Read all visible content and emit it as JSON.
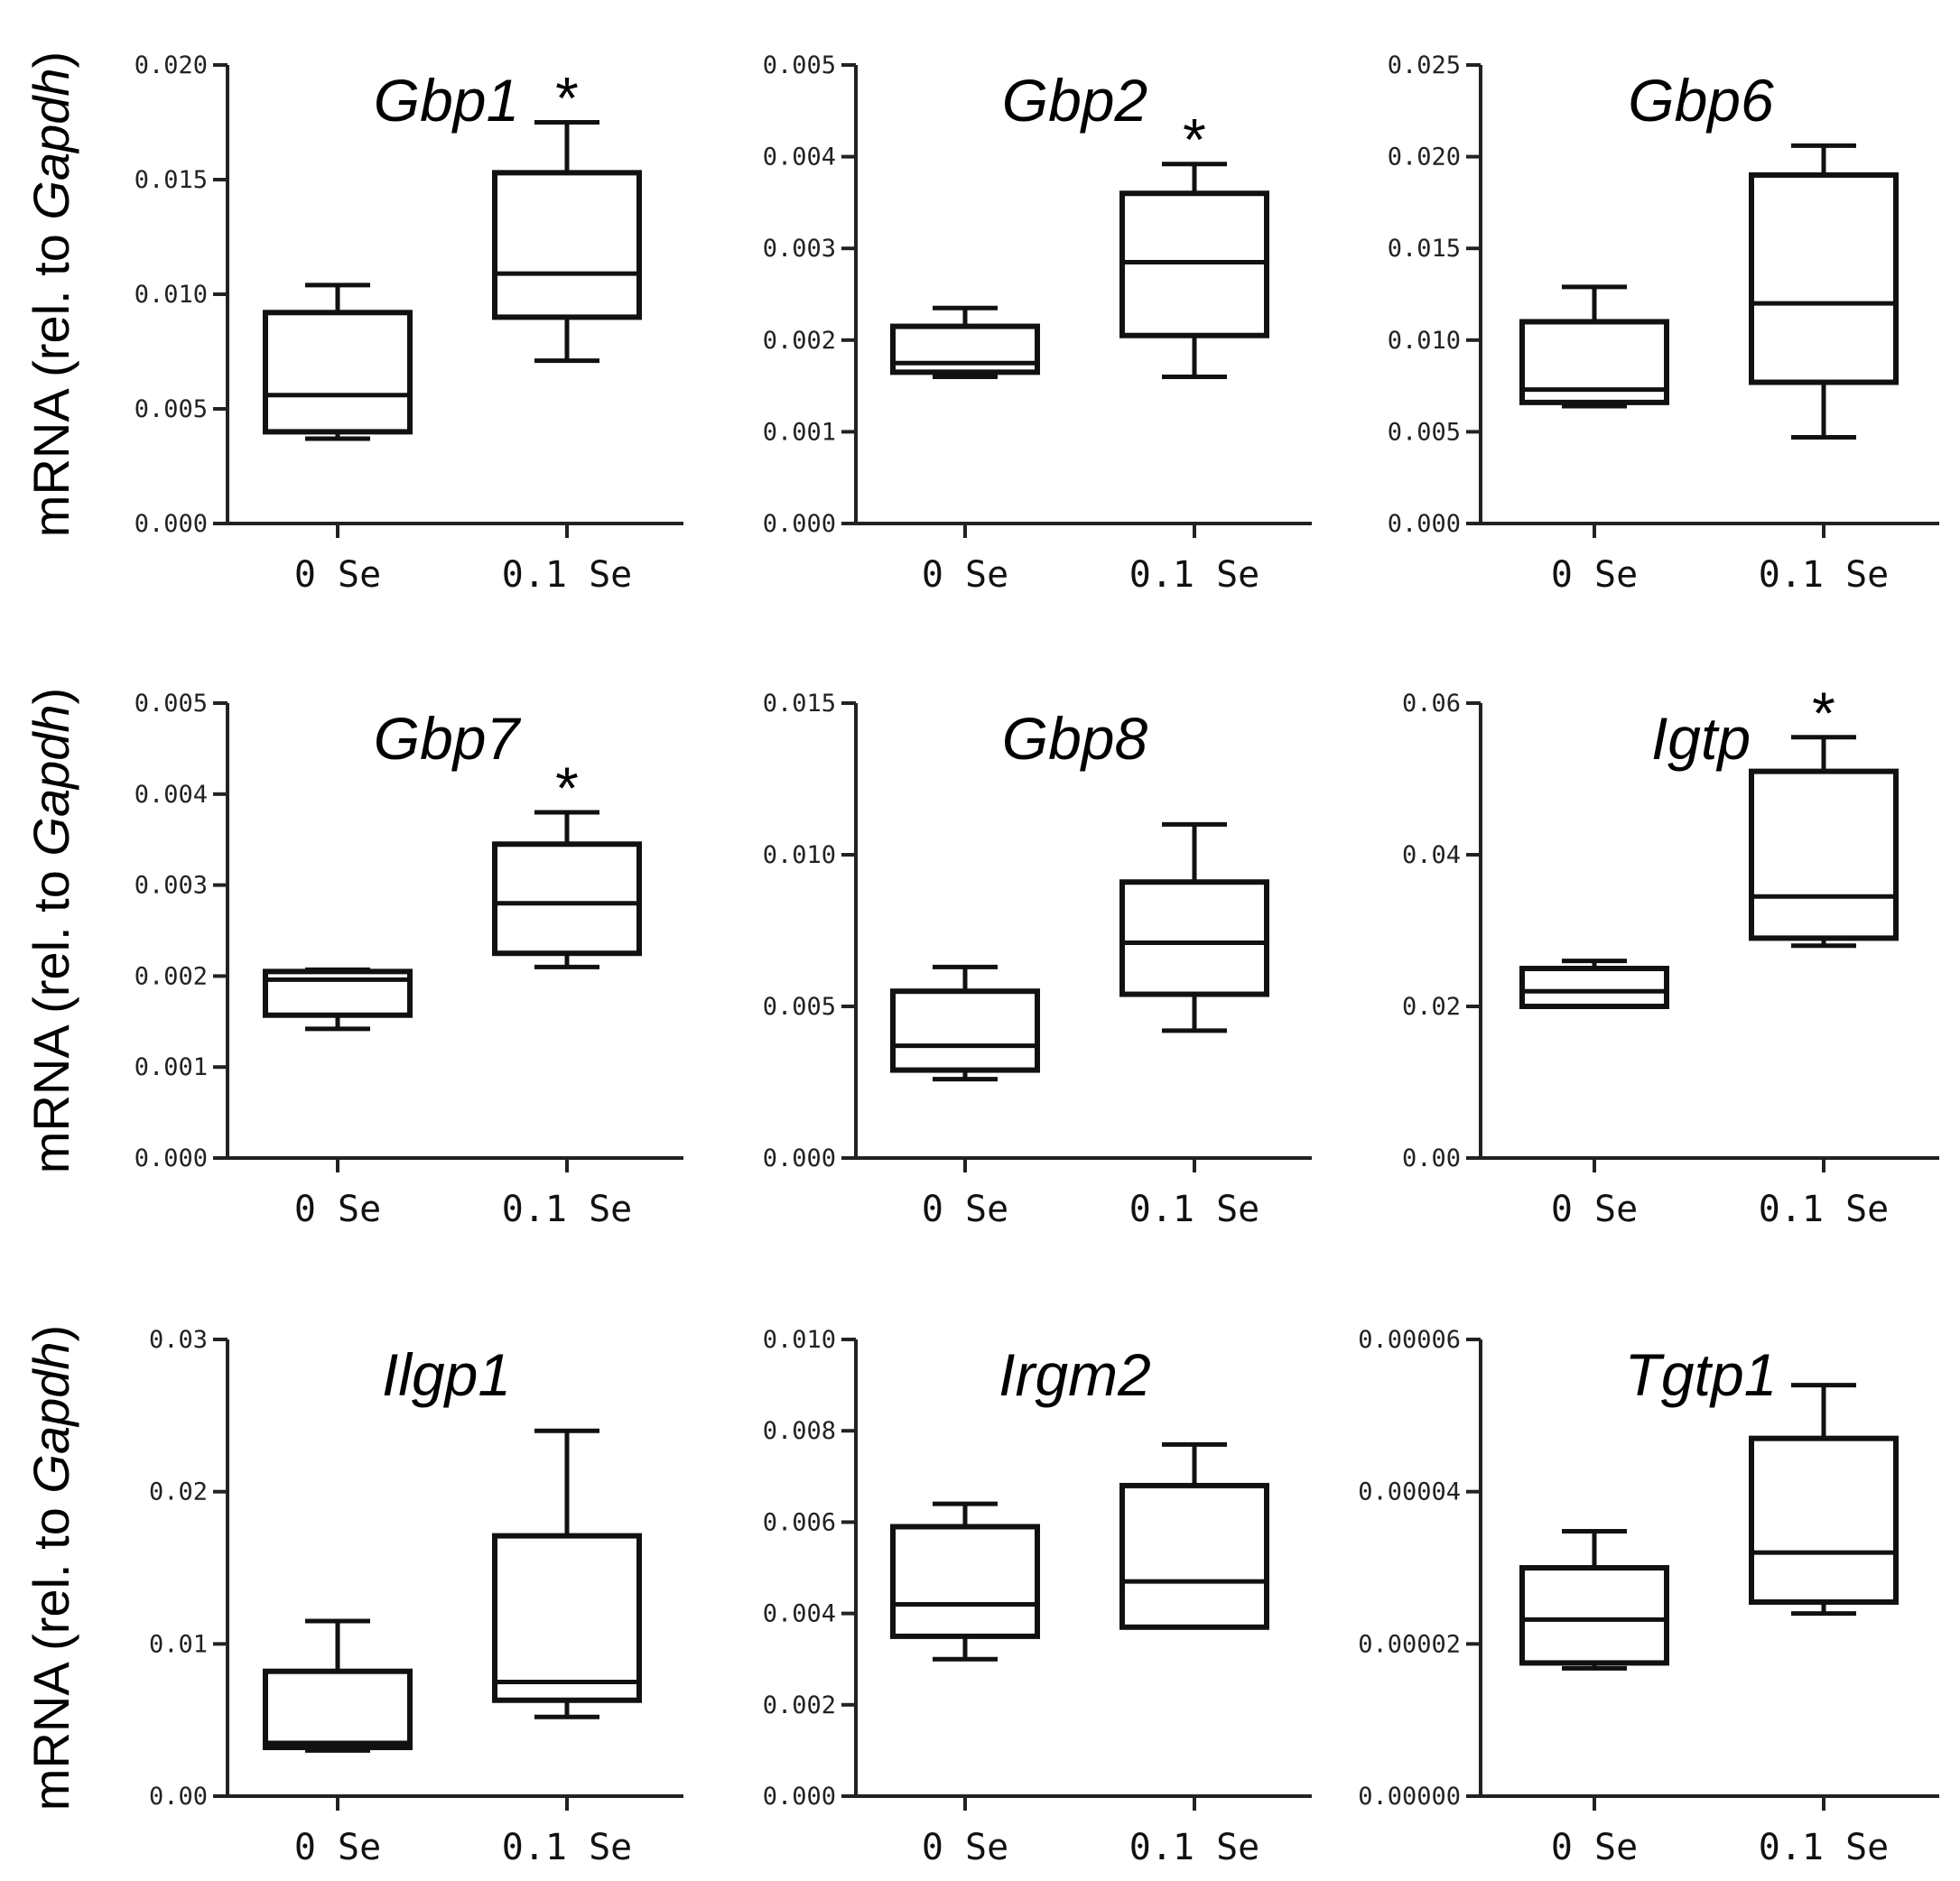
{
  "figure": {
    "ylabel_parts": [
      "mRNA (rel. to ",
      "Gapdh",
      ")"
    ]
  },
  "chart_data": [
    {
      "type": "box",
      "title": "Gbp1",
      "categories": [
        "0 Se",
        "0.1 Se"
      ],
      "ylim": [
        0,
        0.02
      ],
      "yticks": [
        "0.000",
        "0.005",
        "0.010",
        "0.015",
        "0.020"
      ],
      "boxes": [
        {
          "min": 0.0037,
          "q1": 0.004,
          "median": 0.0056,
          "q3": 0.0092,
          "max": 0.0104
        },
        {
          "min": 0.0071,
          "q1": 0.009,
          "median": 0.0109,
          "q3": 0.0153,
          "max": 0.0175
        }
      ],
      "significance": [
        "",
        "*"
      ]
    },
    {
      "type": "box",
      "title": "Gbp2",
      "categories": [
        "0 Se",
        "0.1 Se"
      ],
      "ylim": [
        0,
        0.005
      ],
      "yticks": [
        "0.000",
        "0.001",
        "0.002",
        "0.003",
        "0.004",
        "0.005"
      ],
      "boxes": [
        {
          "min": 0.0016,
          "q1": 0.00165,
          "median": 0.00175,
          "q3": 0.00215,
          "max": 0.00235
        },
        {
          "min": 0.0016,
          "q1": 0.00205,
          "median": 0.00285,
          "q3": 0.0036,
          "max": 0.00392
        }
      ],
      "significance": [
        "",
        "*"
      ]
    },
    {
      "type": "box",
      "title": "Gbp6",
      "categories": [
        "0 Se",
        "0.1 Se"
      ],
      "ylim": [
        0,
        0.025
      ],
      "yticks": [
        "0.000",
        "0.005",
        "0.010",
        "0.015",
        "0.020",
        "0.025"
      ],
      "boxes": [
        {
          "min": 0.0064,
          "q1": 0.0066,
          "median": 0.0073,
          "q3": 0.011,
          "max": 0.0129
        },
        {
          "min": 0.0047,
          "q1": 0.0077,
          "median": 0.012,
          "q3": 0.019,
          "max": 0.0206
        }
      ],
      "significance": [
        "",
        ""
      ]
    },
    {
      "type": "box",
      "title": "Gbp7",
      "categories": [
        "0 Se",
        "0.1 Se"
      ],
      "ylim": [
        0,
        0.005
      ],
      "yticks": [
        "0.000",
        "0.001",
        "0.002",
        "0.003",
        "0.004",
        "0.005"
      ],
      "boxes": [
        {
          "min": 0.00142,
          "q1": 0.00157,
          "median": 0.00196,
          "q3": 0.00205,
          "max": 0.00207
        },
        {
          "min": 0.0021,
          "q1": 0.00225,
          "median": 0.0028,
          "q3": 0.00345,
          "max": 0.0038
        }
      ],
      "significance": [
        "",
        "*"
      ]
    },
    {
      "type": "box",
      "title": "Gbp8",
      "categories": [
        "0 Se",
        "0.1 Se"
      ],
      "ylim": [
        0,
        0.015
      ],
      "yticks": [
        "0.000",
        "0.005",
        "0.010",
        "0.015"
      ],
      "boxes": [
        {
          "min": 0.0026,
          "q1": 0.0029,
          "median": 0.0037,
          "q3": 0.0055,
          "max": 0.0063
        },
        {
          "min": 0.0042,
          "q1": 0.0054,
          "median": 0.0071,
          "q3": 0.0091,
          "max": 0.011
        }
      ],
      "significance": [
        "",
        ""
      ]
    },
    {
      "type": "box",
      "title": "Igtp",
      "categories": [
        "0 Se",
        "0.1 Se"
      ],
      "ylim": [
        0,
        0.06
      ],
      "yticks": [
        "0.00",
        "0.02",
        "0.04",
        "0.06"
      ],
      "boxes": [
        {
          "min": 0.02,
          "q1": 0.02,
          "median": 0.022,
          "q3": 0.025,
          "max": 0.026
        },
        {
          "min": 0.028,
          "q1": 0.029,
          "median": 0.0345,
          "q3": 0.051,
          "max": 0.0555
        }
      ],
      "significance": [
        "",
        "*"
      ]
    },
    {
      "type": "box",
      "title": "Ilgp1",
      "categories": [
        "0 Se",
        "0.1 Se"
      ],
      "ylim": [
        0,
        0.03
      ],
      "yticks": [
        "0.00",
        "0.01",
        "0.02",
        "0.03"
      ],
      "boxes": [
        {
          "min": 0.003,
          "q1": 0.0032,
          "median": 0.0035,
          "q3": 0.0082,
          "max": 0.0115
        },
        {
          "min": 0.0052,
          "q1": 0.0063,
          "median": 0.0075,
          "q3": 0.0171,
          "max": 0.024
        }
      ],
      "significance": [
        "",
        ""
      ]
    },
    {
      "type": "box",
      "title": "Irgm2",
      "categories": [
        "0 Se",
        "0.1 Se"
      ],
      "ylim": [
        0,
        0.01
      ],
      "yticks": [
        "0.000",
        "0.002",
        "0.004",
        "0.006",
        "0.008",
        "0.010"
      ],
      "boxes": [
        {
          "min": 0.003,
          "q1": 0.0035,
          "median": 0.0042,
          "q3": 0.0059,
          "max": 0.0064
        },
        {
          "min": 0.0037,
          "q1": 0.0037,
          "median": 0.0047,
          "q3": 0.0068,
          "max": 0.0077
        }
      ],
      "significance": [
        "",
        ""
      ]
    },
    {
      "type": "box",
      "title": "Tgtp1",
      "categories": [
        "0 Se",
        "0.1 Se"
      ],
      "ylim": [
        0,
        6e-05
      ],
      "yticks": [
        "0.00000",
        "0.00002",
        "0.00004",
        "0.00006"
      ],
      "boxes": [
        {
          "min": 1.68e-05,
          "q1": 1.75e-05,
          "median": 2.32e-05,
          "q3": 3e-05,
          "max": 3.48e-05
        },
        {
          "min": 2.4e-05,
          "q1": 2.55e-05,
          "median": 3.2e-05,
          "q3": 4.7e-05,
          "max": 5.4e-05
        }
      ],
      "significance": [
        "",
        ""
      ]
    }
  ]
}
